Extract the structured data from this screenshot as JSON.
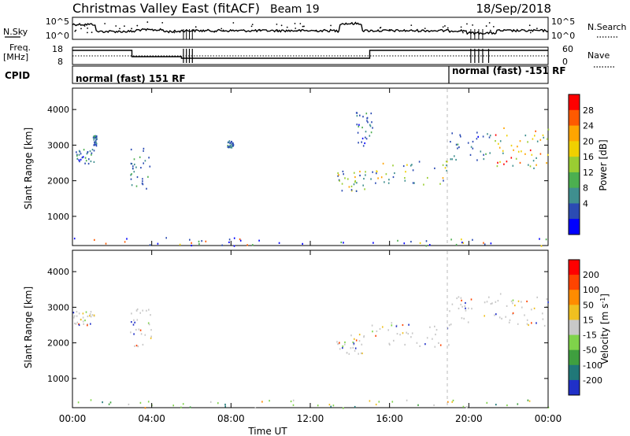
{
  "header": {
    "station": "Christmas Valley East (fitACF)",
    "beam": "Beam 19",
    "date": "18/Sep/2018"
  },
  "summary_panel": {
    "nsky_label": "N.Sky",
    "nsky_ticks": [
      "10^5",
      "10^0"
    ],
    "nsearch_label": "N.Search",
    "nsearch_ticks": [
      "10^5",
      "10^0"
    ],
    "freq_label_1": "Freq.",
    "freq_label_2": "[MHz]",
    "freq_ticks": [
      "18",
      "8"
    ],
    "nave_label": "Nave",
    "nave_ticks": [
      "60",
      "0"
    ],
    "cpid_label": "CPID",
    "cpid_segments": [
      "normal (fast) 151 RF",
      "normal (fast) -151 RF"
    ]
  },
  "chart_data": [
    {
      "type": "heatmap",
      "name": "power",
      "xlabel": "Time UT",
      "ylabel": "Slant Range [km]",
      "x_ticks": [
        "00:00",
        "04:00",
        "08:00",
        "12:00",
        "16:00",
        "20:00",
        "00:00"
      ],
      "y_ticks": [
        "1000",
        "2000",
        "3000",
        "4000"
      ],
      "xlim": [
        0,
        24
      ],
      "ylim": [
        180,
        4600
      ],
      "colorbar_label": "Power [dB]",
      "colorbar_ticks": [
        "28",
        "24",
        "20",
        "16",
        "12",
        "8",
        "4"
      ],
      "colorbar_colors": [
        "#0000ff",
        "#2b4bb3",
        "#3f8f8f",
        "#4caf50",
        "#9acd32",
        "#f0d000",
        "#ffa500",
        "#ff5a00",
        "#ff0000"
      ],
      "scatter_echoes": [
        {
          "t0": 0.0,
          "t1": 1.1,
          "r0": 2500,
          "r1": 2900,
          "color": "power-low"
        },
        {
          "t0": 1.0,
          "t1": 1.2,
          "r0": 3000,
          "r1": 3300,
          "color": "power-low"
        },
        {
          "t0": 2.9,
          "t1": 4.0,
          "r0": 1800,
          "r1": 3000,
          "color": "power-low"
        },
        {
          "t0": 7.8,
          "t1": 8.1,
          "r0": 2950,
          "r1": 3150,
          "color": "power-low"
        },
        {
          "t0": 13.3,
          "t1": 14.8,
          "r0": 1700,
          "r1": 2300,
          "color": "power-mid"
        },
        {
          "t0": 14.3,
          "t1": 15.2,
          "r0": 3000,
          "r1": 4000,
          "color": "power-low"
        },
        {
          "t0": 15.0,
          "t1": 19.0,
          "r0": 1900,
          "r1": 2600,
          "color": "power-mid"
        },
        {
          "t0": 19.0,
          "t1": 21.2,
          "r0": 2600,
          "r1": 3400,
          "color": "power-low"
        },
        {
          "t0": 21.2,
          "t1": 24.0,
          "r0": 2300,
          "r1": 3500,
          "color": "power-high"
        },
        {
          "t0": 0.0,
          "t1": 24.0,
          "r0": 190,
          "r1": 420,
          "color": "power-ground"
        }
      ]
    },
    {
      "type": "heatmap",
      "name": "velocity",
      "xlabel": "Time UT",
      "ylabel": "Slant Range [km]",
      "x_ticks": [
        "00:00",
        "04:00",
        "08:00",
        "12:00",
        "16:00",
        "20:00",
        "00:00"
      ],
      "y_ticks": [
        "1000",
        "2000",
        "3000",
        "4000"
      ],
      "xlim": [
        0,
        24
      ],
      "ylim": [
        180,
        4600
      ],
      "colorbar_label": "Velocity [m s",
      "colorbar_label_sup": "-1",
      "colorbar_label_end": "]",
      "colorbar_ticks": [
        "200",
        "100",
        "50",
        "15",
        "-15",
        "-50",
        "-100",
        "-200"
      ],
      "colorbar_colors": [
        "#2030c8",
        "#207878",
        "#3f9f3f",
        "#7fd34a",
        "#c8c8c8",
        "#f0c020",
        "#ff8c00",
        "#ff4400",
        "#ff0000"
      ],
      "scatter_echoes": [
        {
          "t0": 0.0,
          "t1": 1.1,
          "r0": 2500,
          "r1": 2900,
          "color": "vel-grey"
        },
        {
          "t0": 2.9,
          "t1": 4.0,
          "r0": 1800,
          "r1": 3000,
          "color": "vel-grey"
        },
        {
          "t0": 13.3,
          "t1": 14.8,
          "r0": 1700,
          "r1": 2300,
          "color": "vel-grey"
        },
        {
          "t0": 15.0,
          "t1": 19.0,
          "r0": 1900,
          "r1": 2600,
          "color": "vel-grey"
        },
        {
          "t0": 19.0,
          "t1": 24.0,
          "r0": 2500,
          "r1": 3400,
          "color": "vel-grey"
        },
        {
          "t0": 0.0,
          "t1": 24.0,
          "r0": 190,
          "r1": 420,
          "color": "vel-ground"
        }
      ]
    }
  ]
}
